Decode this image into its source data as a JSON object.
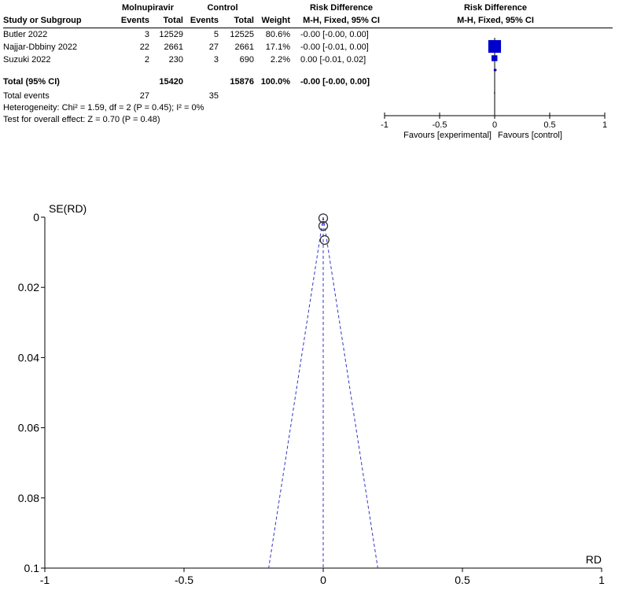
{
  "forest": {
    "group_headers": {
      "treatment": "Molnupiravir",
      "control": "Control",
      "effect_left": "Risk Difference",
      "effect_right": "Risk Difference"
    },
    "col_headers": {
      "study": "Study or Subgroup",
      "events1": "Events",
      "total1": "Total",
      "events2": "Events",
      "total2": "Total",
      "weight": "Weight",
      "method_left": "M-H, Fixed, 95% CI",
      "method_right": "M-H, Fixed, 95% CI"
    },
    "rows": [
      {
        "study": "Butler 2022",
        "events1": "3",
        "total1": "12529",
        "events2": "5",
        "total2": "12525",
        "weight": "80.6%",
        "ci": "-0.00 [-0.00, 0.00]"
      },
      {
        "study": "Najjar-Dbbiny 2022",
        "events1": "22",
        "total1": "2661",
        "events2": "27",
        "total2": "2661",
        "weight": "17.1%",
        "ci": "-0.00 [-0.01, 0.00]"
      },
      {
        "study": "Suzuki 2022",
        "events1": "2",
        "total1": "230",
        "events2": "3",
        "total2": "690",
        "weight": "2.2%",
        "ci": "0.00 [-0.01, 0.02]"
      }
    ],
    "total": {
      "label": "Total (95% CI)",
      "total1": "15420",
      "total2": "15876",
      "weight": "100.0%",
      "ci": "-0.00 [-0.00, 0.00]"
    },
    "total_events": {
      "label": "Total events",
      "events1": "27",
      "events2": "35"
    },
    "heterogeneity": "Heterogeneity: Chi² = 1.59, df = 2 (P = 0.45); I² = 0%",
    "overall_effect": "Test for overall effect: Z = 0.70 (P = 0.48)",
    "axis_ticks": [
      "-1",
      "-0.5",
      "0",
      "0.5",
      "1"
    ],
    "favours_left": "Favours [experimental]",
    "favours_right": "Favours [control]",
    "colors": {
      "marker": "#0000cc",
      "line": "#000000"
    }
  },
  "chart_data": [
    {
      "type": "forest",
      "effect": "Risk Difference",
      "x_range": [
        -1,
        1
      ],
      "studies": [
        {
          "name": "Butler 2022",
          "rd": -0.0002,
          "lo": -0.0006,
          "hi": 0.0003,
          "weight": 80.6
        },
        {
          "name": "Najjar-Dbbiny 2022",
          "rd": -0.0019,
          "lo": -0.0079,
          "hi": 0.0042,
          "weight": 17.1
        },
        {
          "name": "Suzuki 2022",
          "rd": 0.0043,
          "lo": -0.0098,
          "hi": 0.0185,
          "weight": 2.2
        }
      ],
      "pooled": {
        "rd": -0.0006,
        "lo": -0.002,
        "hi": 0.001
      }
    },
    {
      "type": "scatter",
      "subtype": "funnel",
      "xlabel": "RD",
      "ylabel": "SE(RD)",
      "xlim": [
        -1,
        1
      ],
      "ylim": [
        0,
        0.1
      ],
      "y_inverted": true,
      "x_ticks": [
        "-1",
        "-0.5",
        "0",
        "0.5",
        "1"
      ],
      "y_ticks": [
        "0",
        "0.02",
        "0.04",
        "0.06",
        "0.08",
        "0.1"
      ],
      "points": [
        {
          "x": 0.0,
          "y": 0.0003
        },
        {
          "x": 0.0,
          "y": 0.0025
        },
        {
          "x": 0.005,
          "y": 0.0065
        }
      ],
      "pooled_rd": 0.0,
      "colors": {
        "funnel": "#3333cc",
        "points": "#333333"
      }
    }
  ]
}
